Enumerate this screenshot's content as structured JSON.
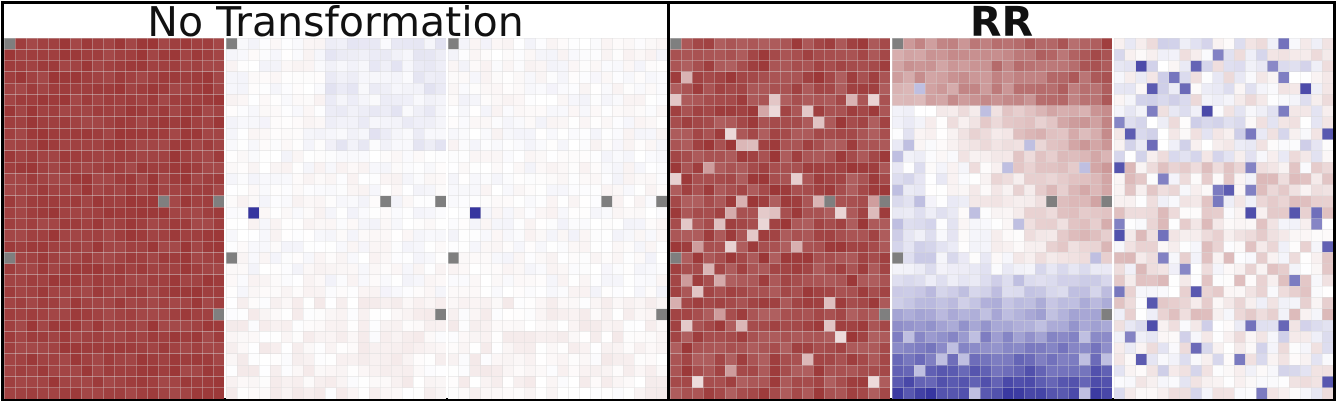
{
  "panels": [
    {
      "title": "No Transformation",
      "title_bold": false
    },
    {
      "title": "RR",
      "title_bold": true
    }
  ],
  "colors": {
    "positive": "#8f1e1e",
    "negative": "#2b2a9a",
    "neutral": "#ffffff",
    "missing": "#7f7f7f",
    "grid_line": "#d8d8d8"
  },
  "chart_data": {
    "type": "heatmap",
    "value_range": [
      -1,
      1
    ],
    "colormap": "diverging red-white-blue",
    "grid": {
      "columns": 20,
      "rows": 32
    },
    "missing_cells": [
      [
        0,
        0
      ],
      [
        14,
        14
      ],
      [
        19,
        14
      ],
      [
        0,
        19
      ],
      [
        19,
        24
      ],
      [
        19,
        32
      ]
    ],
    "heatmaps": [
      {
        "panel": 0,
        "index": 0,
        "description_value": "uniformly strong positive (~0.85)",
        "base": 0.85,
        "pattern": "uniform"
      },
      {
        "panel": 0,
        "index": 1,
        "description_value": "near zero, faint negative top-right, one strong negative cell",
        "base": 0.0,
        "pattern": "faint",
        "highlight": [
          [
            2,
            15,
            -0.95
          ]
        ]
      },
      {
        "panel": 0,
        "index": 2,
        "description_value": "near zero, one strong negative cell",
        "base": 0.0,
        "pattern": "faint",
        "highlight": [
          [
            2,
            15,
            -0.95
          ]
        ]
      },
      {
        "panel": 1,
        "index": 0,
        "description_value": "strong positive with scattered lighter cells",
        "base": 0.8,
        "pattern": "noisy-positive"
      },
      {
        "panel": 1,
        "index": 1,
        "description_value": "positive top/middle-right, negative bottom (gradient)",
        "base": 0.0,
        "pattern": "gradient"
      },
      {
        "panel": 1,
        "index": 2,
        "description_value": "mixed weak positive/negative with scattered negatives",
        "base": 0.0,
        "pattern": "mixed"
      }
    ]
  }
}
